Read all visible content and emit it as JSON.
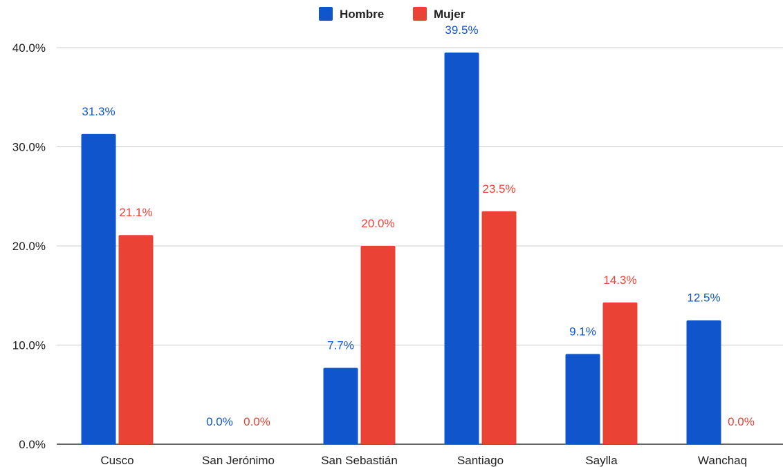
{
  "chart_data": {
    "type": "bar",
    "categories": [
      "Cusco",
      "San Jerónimo",
      "San Sebastián",
      "Santiago",
      "Saylla",
      "Wanchaq"
    ],
    "series": [
      {
        "name": "Hombre",
        "color": "#1155cc",
        "values": [
          31.3,
          0.0,
          7.7,
          39.5,
          9.1,
          12.5
        ],
        "labels": [
          "31.3%",
          "0.0%",
          "7.7%",
          "39.5%",
          "9.1%",
          "12.5%"
        ]
      },
      {
        "name": "Mujer",
        "color": "#ea4335",
        "values": [
          21.1,
          0.0,
          20.0,
          23.5,
          14.3,
          0.0
        ],
        "labels": [
          "21.1%",
          "0.0%",
          "20.0%",
          "23.5%",
          "14.3%",
          "0.0%"
        ]
      }
    ],
    "y_ticks": [
      "0.0%",
      "10.0%",
      "20.0%",
      "30.0%",
      "40.0%"
    ],
    "ylim": [
      0,
      40
    ],
    "grid": true,
    "legend_position": "top-center",
    "title": "",
    "xlabel": "",
    "ylabel": ""
  }
}
